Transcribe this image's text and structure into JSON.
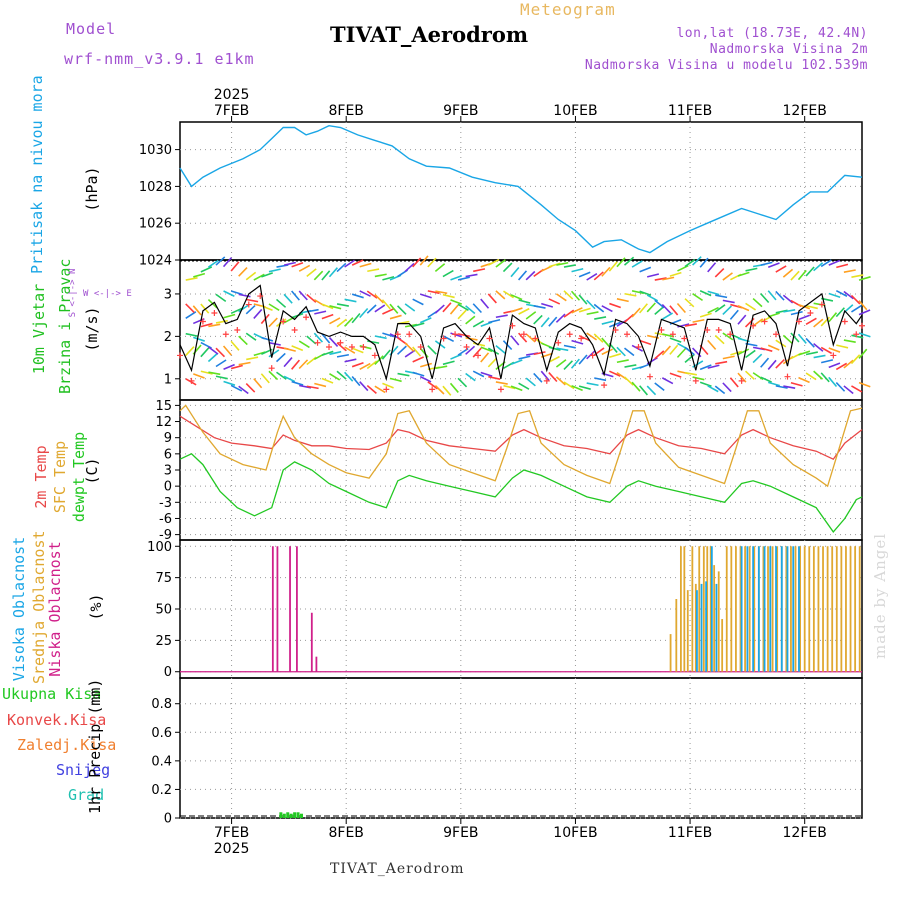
{
  "header": {
    "model_label": "Model",
    "model_name": "wrf-nmm_v3.9.1  e1km",
    "station": "TIVAT_Aerodrom",
    "meteogram": "Meteogram",
    "lonlat": "lon,lat (18.73E, 42.4N)",
    "altitude": "Nadmorska Visina 2m",
    "model_altitude": "Nadmorska Visina u modelu 102.539m"
  },
  "footer": {
    "station": "TIVAT_Aerodrom",
    "credit": "made by Angel"
  },
  "colors": {
    "pressure": "#1aa6e6",
    "wind_label": "#20c020",
    "temp2m": "#e84848",
    "sfc": "#e0a830",
    "dewpt": "#22c822",
    "high_cloud": "#1aa6e6",
    "mid_cloud": "#e0a830",
    "low_cloud": "#d0208a",
    "total_precip": "#22c822",
    "conv_precip": "#e84848",
    "frz_precip": "#f08030",
    "snow": "#4040e0",
    "grad": "#20c0b0",
    "purple": "#a050d0"
  },
  "panel_labels": {
    "pressure": {
      "name": "Pritisak na nivou mora",
      "unit": "(hPa)"
    },
    "wind": {
      "name1": "10m Vjetar",
      "name2": "Brzina i Pravac",
      "unit": "(m/s)",
      "compass": "W <-|-> E",
      "compass2": "S <-|-> N"
    },
    "temp": {
      "t2m": "2m Temp",
      "sfc": "SFC Temp",
      "dew": "dewpt Temp",
      "unit": "(C)"
    },
    "cloud": {
      "high": "Visoka Oblacnost",
      "mid": "Srednja Oblacnost",
      "low": "Niska Oblacnost",
      "unit": "(%)"
    },
    "precip": {
      "total": "Ukupna Kisa",
      "conv": "Konvek.Kisa",
      "frz": "Zaledj.Kisa",
      "snow": "Snijeg",
      "grad": "Grad",
      "unit": "1hr Precip (mm)"
    }
  },
  "chart_data": [
    {
      "type": "line",
      "panel": "pressure",
      "ylabel": "Pritisak na nivou mora (hPa)",
      "ylim": [
        1024,
        1031.5
      ],
      "yticks": [
        1024,
        1026,
        1028,
        1030
      ],
      "xlim": [
        6.55,
        12.5
      ],
      "xticks": [
        7,
        8,
        9,
        10,
        11,
        12
      ],
      "xtick_labels": [
        "7FEB",
        "8FEB",
        "9FEB",
        "10FEB",
        "11FEB",
        "12FEB"
      ],
      "year_label": "2025",
      "grid": true,
      "x": [
        6.55,
        6.65,
        6.75,
        6.9,
        7.1,
        7.25,
        7.35,
        7.45,
        7.55,
        7.65,
        7.75,
        7.85,
        7.95,
        8.1,
        8.25,
        8.4,
        8.55,
        8.7,
        8.9,
        9.1,
        9.3,
        9.5,
        9.7,
        9.85,
        10.0,
        10.15,
        10.25,
        10.4,
        10.55,
        10.65,
        10.8,
        11.0,
        11.15,
        11.3,
        11.45,
        11.6,
        11.75,
        11.9,
        12.05,
        12.2,
        12.35,
        12.5
      ],
      "y": [
        1029.0,
        1028.0,
        1028.5,
        1029.0,
        1029.5,
        1030.0,
        1030.6,
        1031.2,
        1031.2,
        1030.8,
        1031.0,
        1031.3,
        1031.2,
        1030.8,
        1030.5,
        1030.2,
        1029.5,
        1029.1,
        1029.0,
        1028.5,
        1028.2,
        1028.0,
        1027.0,
        1026.2,
        1025.6,
        1024.7,
        1025.0,
        1025.1,
        1024.6,
        1024.4,
        1025.0,
        1025.6,
        1026.0,
        1026.4,
        1026.8,
        1026.5,
        1026.2,
        1027.0,
        1027.7,
        1027.7,
        1028.6,
        1028.5
      ],
      "series": [
        {
          "name": "Pritisak na nivou mora"
        }
      ]
    },
    {
      "type": "line",
      "panel": "wind",
      "ylabel": "10m Vjetar Brzina i Pravac (m/s)",
      "ylim": [
        0.5,
        3.8
      ],
      "yticks": [
        1,
        2,
        3
      ],
      "xlim": [
        6.55,
        12.5
      ],
      "grid": true,
      "x": [
        6.55,
        6.65,
        6.75,
        6.85,
        6.95,
        7.05,
        7.15,
        7.25,
        7.35,
        7.45,
        7.55,
        7.65,
        7.75,
        7.85,
        7.95,
        8.05,
        8.15,
        8.25,
        8.35,
        8.45,
        8.55,
        8.65,
        8.75,
        8.85,
        8.95,
        9.05,
        9.15,
        9.25,
        9.35,
        9.45,
        9.55,
        9.65,
        9.75,
        9.85,
        9.95,
        10.05,
        10.15,
        10.25,
        10.35,
        10.45,
        10.55,
        10.65,
        10.75,
        10.85,
        10.95,
        11.05,
        11.15,
        11.25,
        11.35,
        11.45,
        11.55,
        11.65,
        11.75,
        11.85,
        11.95,
        12.05,
        12.15,
        12.25,
        12.35,
        12.45,
        12.5
      ],
      "y": [
        1.8,
        1.2,
        2.6,
        2.8,
        2.3,
        2.4,
        3.0,
        3.2,
        1.5,
        2.6,
        2.4,
        2.7,
        2.1,
        2.0,
        2.1,
        2.0,
        2.0,
        1.8,
        1.0,
        2.3,
        2.3,
        2.0,
        1.0,
        2.2,
        2.3,
        2.0,
        1.8,
        2.2,
        1.0,
        2.5,
        2.3,
        2.2,
        1.2,
        2.1,
        2.3,
        2.2,
        1.8,
        1.1,
        2.4,
        2.3,
        2.0,
        1.3,
        2.4,
        2.3,
        2.2,
        1.2,
        2.4,
        2.4,
        2.3,
        1.2,
        2.5,
        2.6,
        2.3,
        1.3,
        2.6,
        2.8,
        3.0,
        1.8,
        2.6,
        2.3,
        2.5
      ],
      "series": [
        {
          "name": "10m Vjetar"
        }
      ]
    },
    {
      "type": "line",
      "panel": "temperature",
      "ylabel": "(C)",
      "ylim": [
        -10,
        16
      ],
      "yticks": [
        -9,
        -6,
        -3,
        0,
        3,
        6,
        9,
        12,
        15
      ],
      "xlim": [
        6.55,
        12.5
      ],
      "grid": true,
      "series": [
        {
          "name": "2m Temp",
          "x": [
            6.55,
            6.7,
            6.85,
            7.0,
            7.2,
            7.35,
            7.45,
            7.55,
            7.7,
            7.85,
            8.0,
            8.2,
            8.35,
            8.45,
            8.55,
            8.7,
            8.9,
            9.1,
            9.3,
            9.45,
            9.55,
            9.7,
            9.9,
            10.1,
            10.3,
            10.45,
            10.55,
            10.7,
            10.9,
            11.1,
            11.3,
            11.45,
            11.55,
            11.7,
            11.9,
            12.1,
            12.25,
            12.35,
            12.5
          ],
          "y": [
            13,
            11,
            9,
            8,
            7.5,
            7,
            9.5,
            8.5,
            7.5,
            7.5,
            7,
            6.8,
            8,
            10.5,
            10,
            8.5,
            7.5,
            7,
            6.5,
            9.5,
            10.5,
            9,
            7.5,
            7,
            6,
            9.5,
            10.5,
            9,
            7.5,
            7,
            6,
            9.5,
            10.5,
            9,
            7.5,
            6.5,
            5,
            8,
            10.5
          ]
        },
        {
          "name": "SFC Temp",
          "x": [
            6.55,
            6.6,
            6.75,
            6.9,
            7.1,
            7.3,
            7.4,
            7.45,
            7.55,
            7.7,
            7.85,
            8.0,
            8.2,
            8.35,
            8.45,
            8.55,
            8.7,
            8.9,
            9.1,
            9.3,
            9.4,
            9.5,
            9.6,
            9.7,
            9.9,
            10.1,
            10.3,
            10.4,
            10.5,
            10.6,
            10.7,
            10.9,
            11.1,
            11.3,
            11.4,
            11.5,
            11.6,
            11.7,
            11.9,
            12.1,
            12.2,
            12.3,
            12.4,
            12.5
          ],
          "y": [
            14,
            15,
            10,
            6,
            4,
            3,
            10,
            13,
            9,
            6,
            4,
            2.5,
            1.5,
            6,
            13.5,
            14,
            8,
            4,
            2.5,
            1,
            7,
            13.5,
            14,
            8,
            4,
            2,
            0.5,
            7,
            14,
            14,
            8,
            3.5,
            2,
            0.5,
            7,
            14,
            14,
            8,
            4,
            1.5,
            0,
            7,
            14,
            14.5
          ]
        },
        {
          "name": "dewpt Temp",
          "x": [
            6.55,
            6.65,
            6.75,
            6.9,
            7.05,
            7.2,
            7.35,
            7.45,
            7.55,
            7.7,
            7.85,
            8.0,
            8.2,
            8.35,
            8.45,
            8.55,
            8.7,
            8.9,
            9.1,
            9.3,
            9.45,
            9.55,
            9.7,
            9.9,
            10.1,
            10.3,
            10.45,
            10.55,
            10.7,
            10.9,
            11.1,
            11.3,
            11.45,
            11.55,
            11.7,
            11.9,
            12.1,
            12.25,
            12.35,
            12.45,
            12.5
          ],
          "y": [
            5,
            6,
            4,
            -1,
            -4,
            -5.5,
            -4,
            3,
            4.5,
            3,
            0.5,
            -1,
            -3,
            -4,
            1,
            2,
            1,
            0,
            -1,
            -2,
            1.5,
            3,
            2,
            0,
            -2,
            -3,
            0,
            1,
            0,
            -1,
            -2,
            -3,
            0.5,
            1,
            0,
            -2,
            -4,
            -8.5,
            -6,
            -2.5,
            -2
          ]
        }
      ]
    },
    {
      "type": "bar",
      "panel": "cloud",
      "ylabel": "(%)",
      "ylim": [
        -5,
        105
      ],
      "yticks": [
        0,
        25,
        50,
        75,
        100
      ],
      "xlim": [
        6.55,
        12.5
      ],
      "grid": true,
      "series": [
        {
          "name": "Niska Oblacnost",
          "x": [
            7.36,
            7.4,
            7.51,
            7.57,
            7.7,
            7.74
          ],
          "values": [
            100,
            100,
            100,
            100,
            47,
            12
          ]
        },
        {
          "name": "Srednja Oblacnost",
          "x": [
            10.83,
            10.88,
            10.92,
            10.95,
            10.98,
            11.02,
            11.05,
            11.08,
            11.12,
            11.15,
            11.18,
            11.21,
            11.25,
            11.28,
            11.32,
            11.36,
            11.4,
            11.44,
            11.48,
            11.52,
            11.56,
            11.6,
            11.64,
            11.68,
            11.72,
            11.76,
            11.8,
            11.84,
            11.88,
            11.92,
            11.96,
            12.0,
            12.04,
            12.08,
            12.12,
            12.16,
            12.2,
            12.24,
            12.28,
            12.32,
            12.36,
            12.4,
            12.44,
            12.48
          ],
          "values": [
            30,
            58,
            100,
            100,
            65,
            100,
            70,
            100,
            100,
            100,
            100,
            85,
            80,
            42,
            100,
            100,
            100,
            100,
            100,
            100,
            100,
            100,
            100,
            100,
            100,
            100,
            100,
            100,
            100,
            100,
            100,
            100,
            100,
            100,
            100,
            100,
            100,
            100,
            100,
            100,
            100,
            100,
            100,
            100
          ]
        },
        {
          "name": "Visoka Oblacnost",
          "x": [
            11.06,
            11.1,
            11.14,
            11.19,
            11.23,
            11.45,
            11.5,
            11.55,
            11.6,
            11.65,
            11.7,
            11.75,
            11.8,
            11.85,
            11.9,
            11.95
          ],
          "values": [
            65,
            70,
            72,
            100,
            70,
            100,
            100,
            100,
            100,
            100,
            100,
            100,
            100,
            100,
            100,
            100
          ]
        }
      ]
    },
    {
      "type": "bar",
      "panel": "precipitation",
      "ylabel": "1hr Precip (mm)",
      "ylim": [
        0,
        0.98
      ],
      "yticks": [
        0,
        0.2,
        0.4,
        0.6,
        0.8
      ],
      "xlim": [
        6.55,
        12.5
      ],
      "xtick_labels": [
        "7FEB",
        "8FEB",
        "9FEB",
        "10FEB",
        "11FEB",
        "12FEB"
      ],
      "year_label": "2025",
      "grid": true,
      "series": [
        {
          "name": "Ukupna Kisa",
          "x": [
            7.43,
            7.46,
            7.49,
            7.52,
            7.55,
            7.58,
            7.61
          ],
          "values": [
            0.04,
            0.03,
            0.04,
            0.03,
            0.04,
            0.04,
            0.03
          ]
        }
      ]
    }
  ]
}
